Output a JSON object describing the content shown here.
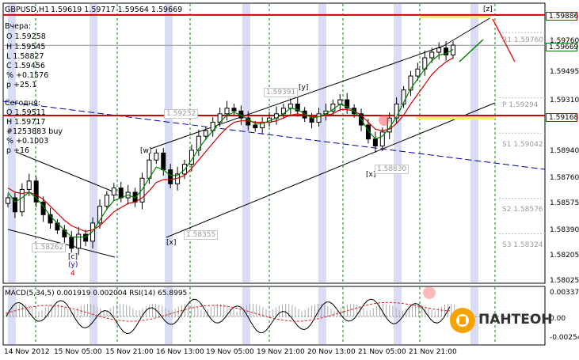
{
  "header": {
    "symbol": "GBPUSD,H1",
    "ohlc": "1.59619 1.59717 1.59564 1.59669"
  },
  "yesterday": {
    "title": "Вчера:",
    "o": "O 1.59258",
    "h": "H 1.59545",
    "l": "L 1.58827",
    "c": "C 1.59456",
    "pct": "% +0.1576",
    "p": "p +25.1"
  },
  "today": {
    "title": "Сегодня:",
    "o": "O 1.59511",
    "h": "H 1.59717",
    "l": "L 1.59564",
    "c": "C 1.59669",
    "pct": "% +0.1003",
    "p": "p +16",
    "signal": "#1253883 buy"
  },
  "levels": {
    "r1": "R1 1.59760",
    "p": "P 1.59294",
    "s1": "S1 1.59042",
    "s2": "S2 1.58576",
    "s3": "S3 1.58324"
  },
  "waves": {
    "z": "[z]",
    "y_top": "[y]",
    "w": "[w]",
    "x_left": "[x]",
    "x_right": "[x]",
    "c": "[c]",
    "y_small": "(y)",
    "four": "4"
  },
  "price_tags": {
    "tag1": "1.59391",
    "tag2": "1.59232",
    "tag3": "1.58830",
    "tag4": "1.58355",
    "tag5": "1.58262"
  },
  "indicator": {
    "label": "MACD(5,34,5) 0.001919 0.002004  RSI(14) 65.8995",
    "scale_top": "0.003373",
    "scale_mid": "0.00",
    "scale_bottom": "-0.002547"
  },
  "axis_boxes": {
    "top_red": "1.59886",
    "current_green": "1.59669",
    "support_red": "1.59168"
  },
  "brand": "ПАНТЕОН",
  "chart_data": {
    "type": "line",
    "title": "GBPUSD,H1",
    "y_ticks": [
      "1.59760",
      "1.59495",
      "1.59310",
      "1.59168",
      "1.58940",
      "1.58760",
      "1.58575",
      "1.58390",
      "1.58205",
      "1.58025"
    ],
    "y_tick_values": [
      1.5976,
      1.59495,
      1.5931,
      1.59168,
      1.5894,
      1.5876,
      1.58575,
      1.5839,
      1.58205,
      1.58025
    ],
    "x_ticks": [
      "14 Nov 2012",
      "15 Nov 05:00",
      "15 Nov 21:00",
      "16 Nov 13:00",
      "19 Nov 05:00",
      "19 Nov 21:00",
      "20 Nov 13:00",
      "21 Nov 05:00",
      "21 Nov 21:00"
    ],
    "ylim": [
      1.5797,
      1.5997
    ],
    "horizontal_lines": {
      "resistance": 1.59886,
      "support": 1.59168,
      "current": 1.59669
    },
    "pivots": {
      "R1": 1.5976,
      "P": 1.59294,
      "S1": 1.59042,
      "S2": 1.58576,
      "S3": 1.58324
    },
    "close_series": [
      1.5858,
      1.5848,
      1.5864,
      1.587,
      1.5855,
      1.5846,
      1.584,
      1.5835,
      1.583,
      1.5822,
      1.5832,
      1.5827,
      1.584,
      1.5852,
      1.586,
      1.5865,
      1.5858,
      1.5862,
      1.5855,
      1.5872,
      1.5885,
      1.589,
      1.5878,
      1.5868,
      1.5875,
      1.5882,
      1.5892,
      1.5902,
      1.5906,
      1.5912,
      1.5918,
      1.5922,
      1.592,
      1.5915,
      1.591,
      1.5908,
      1.5912,
      1.5915,
      1.5918,
      1.5922,
      1.5925,
      1.592,
      1.5915,
      1.5912,
      1.5918,
      1.592,
      1.5925,
      1.5928,
      1.5922,
      1.5918,
      1.591,
      1.59,
      1.5895,
      1.5905,
      1.5915,
      1.5925,
      1.5935,
      1.5945,
      1.595,
      1.5958,
      1.5962,
      1.5965,
      1.596,
      1.5967
    ],
    "ma_fast": [
      1.5862,
      1.5855,
      1.5858,
      1.5862,
      1.5858,
      1.5852,
      1.5845,
      1.584,
      1.5835,
      1.583,
      1.583,
      1.583,
      1.5834,
      1.5842,
      1.585,
      1.5856,
      1.5858,
      1.586,
      1.5858,
      1.5864,
      1.5872,
      1.588,
      1.5878,
      1.5874,
      1.5874,
      1.5878,
      1.5885,
      1.5893,
      1.59,
      1.5906,
      1.5912,
      1.5917,
      1.5919,
      1.5917,
      1.5914,
      1.5911,
      1.5911,
      1.5913,
      1.5915,
      1.5918,
      1.5922,
      1.5921,
      1.5918,
      1.5915,
      1.5916,
      1.5918,
      1.5921,
      1.5925,
      1.5923,
      1.592,
      1.5914,
      1.5906,
      1.59,
      1.5902,
      1.5908,
      1.5916,
      1.5926,
      1.5936,
      1.5943,
      1.595,
      1.5956,
      1.596,
      1.5961,
      1.5964
    ],
    "ma_slow": [
      1.5865,
      1.5862,
      1.5861,
      1.5862,
      1.586,
      1.5857,
      1.5852,
      1.5847,
      1.5842,
      1.5838,
      1.5836,
      1.5834,
      1.5835,
      1.5838,
      1.5843,
      1.5848,
      1.5851,
      1.5854,
      1.5855,
      1.5858,
      1.5863,
      1.5869,
      1.5871,
      1.5871,
      1.5872,
      1.5874,
      1.5879,
      1.5885,
      1.5891,
      1.5897,
      1.5903,
      1.5908,
      1.5912,
      1.5913,
      1.5913,
      1.5912,
      1.5912,
      1.5912,
      1.5913,
      1.5915,
      1.5917,
      1.5918,
      1.5917,
      1.5916,
      1.5916,
      1.5917,
      1.5918,
      1.5921,
      1.5921,
      1.592,
      1.5917,
      1.5912,
      1.5907,
      1.5906,
      1.5907,
      1.5911,
      1.5917,
      1.5925,
      1.5932,
      1.5939,
      1.5946,
      1.5951,
      1.5955,
      1.5958
    ]
  },
  "colors": {
    "resistance": "#cc0000",
    "support": "#cc0000",
    "grid": "#008000",
    "band": "#d8dcf4",
    "ma_fast": "#008000",
    "ma_slow": "#cc0000",
    "trend_blue": "#0000aa",
    "accent_yellow": "#ffe680"
  }
}
